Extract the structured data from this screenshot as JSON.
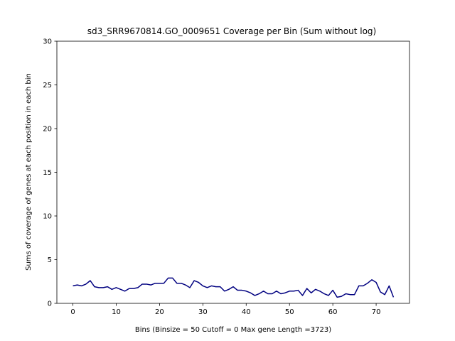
{
  "chart_data": {
    "type": "line",
    "title": "sd3_SRR9670814.GO_0009651 Coverage per Bin (Sum without log)",
    "xlabel": "Bins  (Binsize = 50 Cutoff = 0 Max gene Length =3723)",
    "ylabel": "Sums of coverage of genes at each position in each bin",
    "xlim": [
      -3.7,
      77.7
    ],
    "ylim": [
      0,
      30
    ],
    "xticks": [
      0,
      10,
      20,
      30,
      40,
      50,
      60,
      70
    ],
    "yticks": [
      0,
      5,
      10,
      15,
      20,
      25,
      30
    ],
    "grid": false,
    "series": [
      {
        "color": "#000080",
        "x": [
          0,
          1,
          2,
          3,
          4,
          5,
          6,
          7,
          8,
          9,
          10,
          11,
          12,
          13,
          14,
          15,
          16,
          17,
          18,
          19,
          20,
          21,
          22,
          23,
          24,
          25,
          26,
          27,
          28,
          29,
          30,
          31,
          32,
          33,
          34,
          35,
          36,
          37,
          38,
          39,
          40,
          41,
          42,
          43,
          44,
          45,
          46,
          47,
          48,
          49,
          50,
          51,
          52,
          53,
          54,
          55,
          56,
          57,
          58,
          59,
          60,
          61,
          62,
          63,
          64,
          65,
          66,
          67,
          68,
          69,
          70,
          71,
          72,
          73,
          74
        ],
        "values": [
          2.0,
          2.1,
          2.0,
          2.2,
          2.6,
          1.9,
          1.8,
          1.8,
          1.9,
          1.6,
          1.8,
          1.6,
          1.4,
          1.7,
          1.7,
          1.8,
          2.2,
          2.2,
          2.1,
          2.3,
          2.3,
          2.3,
          2.9,
          2.9,
          2.3,
          2.3,
          2.1,
          1.8,
          2.6,
          2.4,
          2.0,
          1.8,
          2.0,
          1.9,
          1.9,
          1.4,
          1.6,
          1.9,
          1.5,
          1.5,
          1.4,
          1.2,
          0.9,
          1.1,
          1.4,
          1.1,
          1.1,
          1.4,
          1.1,
          1.2,
          1.4,
          1.4,
          1.5,
          0.9,
          1.7,
          1.2,
          1.6,
          1.4,
          1.1,
          0.9,
          1.5,
          0.7,
          0.8,
          1.1,
          1.0,
          1.0,
          2.0,
          2.0,
          2.3,
          2.7,
          2.4,
          1.3,
          1.0,
          2.0,
          0.7
        ]
      }
    ]
  }
}
